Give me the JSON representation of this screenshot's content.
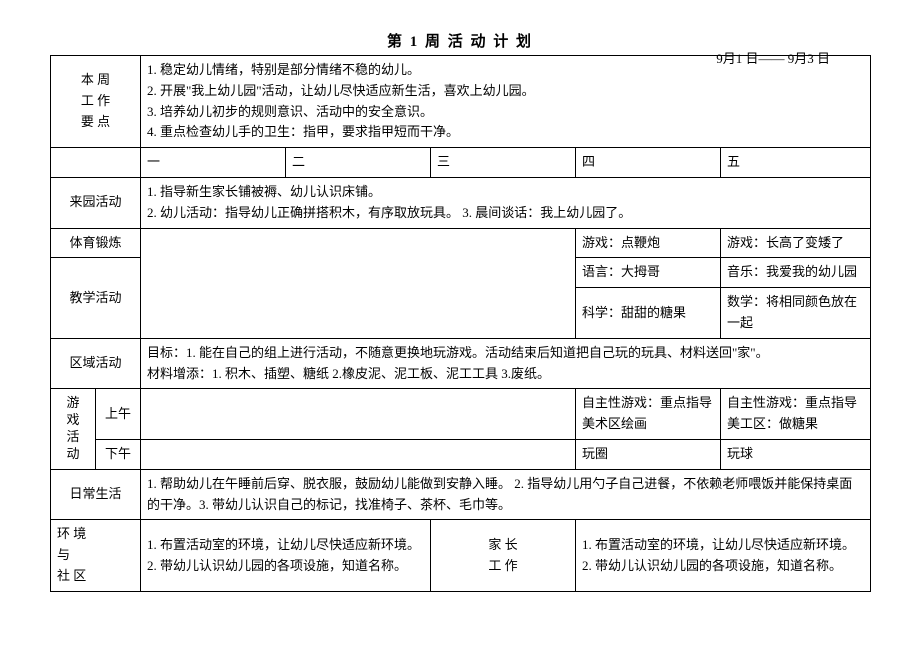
{
  "title": "第  1  周    活  动  计  划",
  "date": "9月1  日——  9月3  日",
  "rows": {
    "week_points_label": "本  周\n工  作\n要  点",
    "week_points": "1. 稳定幼儿情绪，特别是部分情绪不稳的幼儿。\n2. 开展\"我上幼儿园\"活动，让幼儿尽快适应新生活，喜欢上幼儿园。\n3. 培养幼儿初步的规则意识、活动中的安全意识。\n4. 重点检查幼儿手的卫生：指甲，要求指甲短而干净。",
    "days": {
      "d1": "一",
      "d2": "二",
      "d3": "三",
      "d4": "四",
      "d5": "五"
    },
    "arrival_label": "来园活动",
    "arrival": "1. 指导新生家长铺被褥、幼儿认识床铺。\n2. 幼儿活动：指导幼儿正确拼搭积木，有序取放玩具。  3. 晨间谈话：我上幼儿园了。",
    "pe_label": "体育锻炼",
    "pe_d4": "游戏：点鞭炮",
    "pe_d5": "游戏：长高了变矮了",
    "teach_label": "教学活动",
    "teach_d4a": "语言：大拇哥",
    "teach_d5a": "音乐：我爱我的幼儿园",
    "teach_d4b": "科学：甜甜的糖果",
    "teach_d5b": "数学：将相同颜色放在一起",
    "area_label": "区域活动",
    "area": "目标：1. 能在自己的组上进行活动，不随意更换地玩游戏。活动结束后知道把自己玩的玩具、材料送回\"家\"。\n材料增添：1. 积木、插塑、糖纸 2.橡皮泥、泥工板、泥工工具 3.废纸。",
    "game_label": "游戏活动",
    "am_label": "上午",
    "pm_label": "下午",
    "am_d4": "自主性游戏：重点指导美术区绘画",
    "am_d5": "自主性游戏：重点指导美工区：做糖果",
    "pm_d4": "玩圈",
    "pm_d5": "玩球",
    "daily_label": "日常生活",
    "daily": "1. 帮助幼儿在午睡前后穿、脱衣服，鼓励幼儿能做到安静入睡。 2. 指导幼儿用勺子自己进餐，不依赖老师喂饭并能保持桌面的干净。3. 带幼儿认识自己的标记，找准椅子、茶杯、毛巾等。",
    "env_label": "环    境\n与\n社    区",
    "env": "1. 布置活动室的环境，让幼儿尽快适应新环境。\n2. 带幼儿认识幼儿园的各项设施，知道名称。",
    "parent_label": "家  长\n工  作",
    "parent": "1. 布置活动室的环境，让幼儿尽快适应新环境。\n2. 带幼儿认识幼儿园的各项设施，知道名称。"
  }
}
